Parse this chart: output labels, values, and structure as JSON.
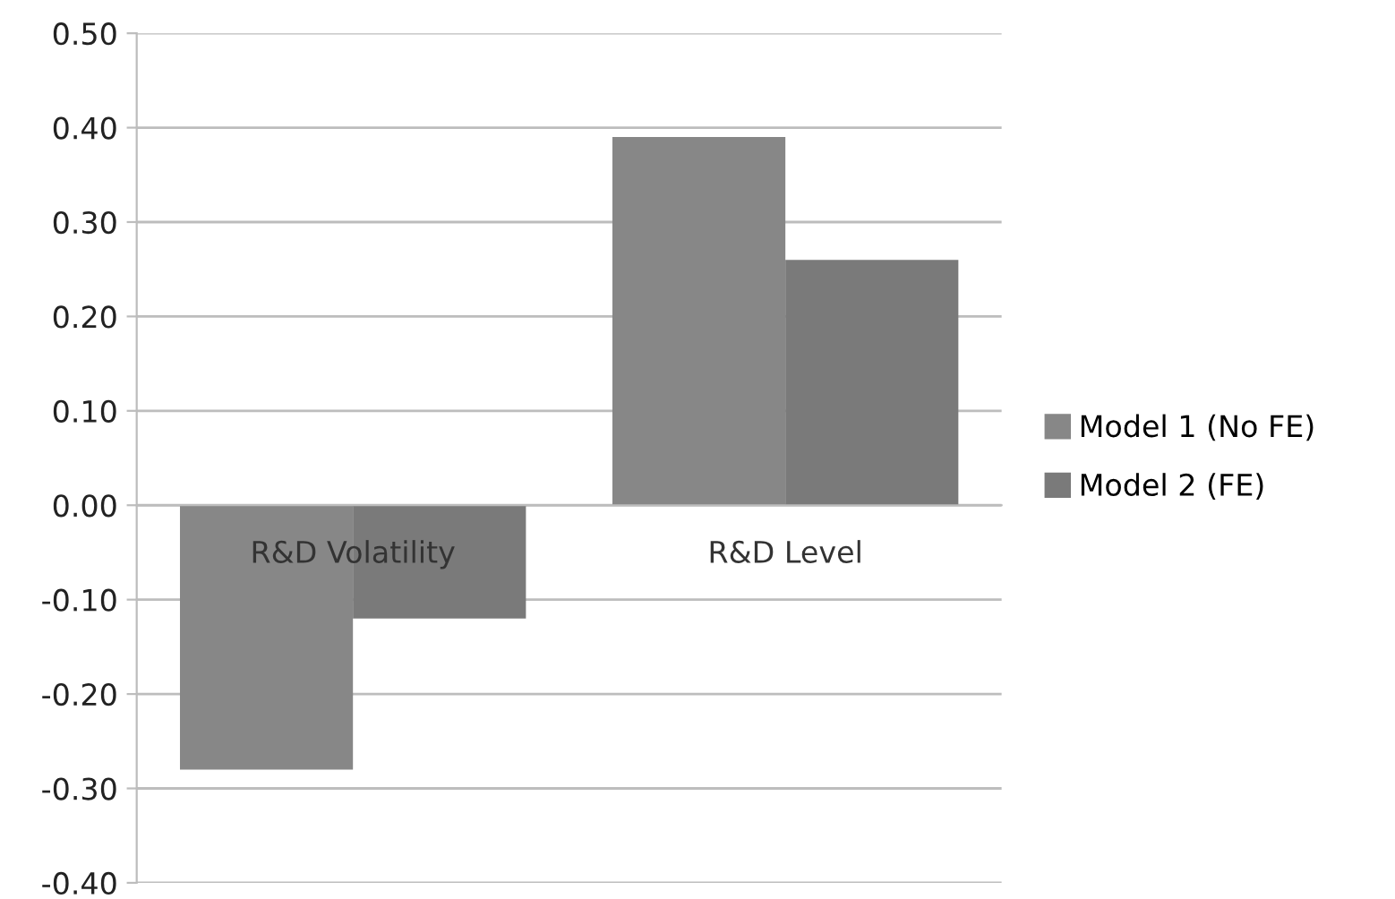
{
  "chart_data": {
    "type": "bar",
    "categories": [
      "R&D Volatility",
      "R&D Level"
    ],
    "series": [
      {
        "name": "Model 1 (No FE)",
        "color": "#878787",
        "values": [
          -0.28,
          0.39
        ]
      },
      {
        "name": "Model 2 (FE)",
        "color": "#7a7a7a",
        "values": [
          -0.12,
          0.26
        ]
      }
    ],
    "ylim": [
      -0.4,
      0.5
    ],
    "yticks": [
      {
        "value": -0.4,
        "label": "-0.40"
      },
      {
        "value": -0.3,
        "label": "-0.30"
      },
      {
        "value": -0.2,
        "label": "-0.20"
      },
      {
        "value": -0.1,
        "label": "-0.10"
      },
      {
        "value": 0,
        "label": "0.00"
      },
      {
        "value": 0.1,
        "label": "0.10"
      },
      {
        "value": 0.2,
        "label": "0.20"
      },
      {
        "value": 0.3,
        "label": "0.30"
      },
      {
        "value": 0.4,
        "label": "0.40"
      },
      {
        "value": 0.5,
        "label": "0.50"
      }
    ],
    "grid": "y",
    "legend": "right"
  }
}
